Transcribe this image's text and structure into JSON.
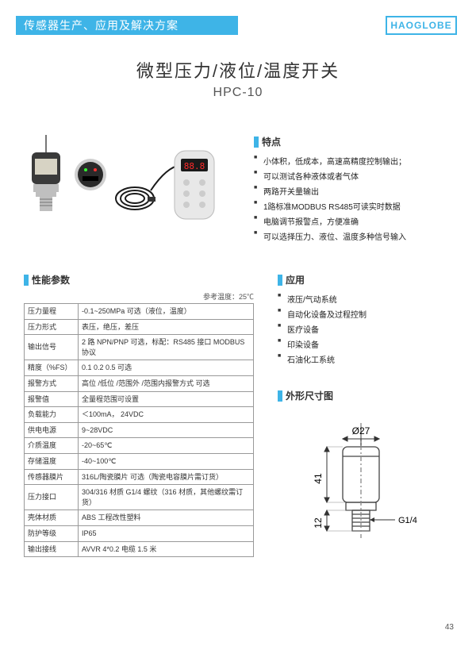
{
  "header": {
    "banner": "传感器生产、应用及解决方案",
    "logo": "HAOGLOBE"
  },
  "title": {
    "line1": "微型压力/液位/温度开关",
    "line2": "HPC-10"
  },
  "features": {
    "heading": "特点",
    "items": [
      "小体积，低成本，高速高精度控制输出；",
      "可以测试各种液体或者气体",
      "两路开关量输出",
      "1路标准MODBUS RS485可读实时数据",
      "电脑调节报警点，方便准确",
      "可以选择压力、液位、温度多种信号输入"
    ]
  },
  "specs": {
    "heading": "性能参数",
    "ref_temp": "参考温度：25℃",
    "rows": [
      {
        "k": "压力量程",
        "v": "-0.1~250MPa 可选（液位，温度）"
      },
      {
        "k": "压力形式",
        "v": "表压，绝压，差压"
      },
      {
        "k": "输出信号",
        "v": "2 路 NPN/PNP 可选，标配：RS485 接口 MODBUS协议"
      },
      {
        "k": "精度（%FS）",
        "v": "0.1   0.2  0.5   可选"
      },
      {
        "k": "报警方式",
        "v": "高位 /低位 /范围外 /范围内报警方式 可选"
      },
      {
        "k": "报警值",
        "v": "全量程范围可设置"
      },
      {
        "k": "负载能力",
        "v": "＜100mA，   24VDC"
      },
      {
        "k": "供电电源",
        "v": "9~28VDC"
      },
      {
        "k": "介质温度",
        "v": "-20~65℃"
      },
      {
        "k": "存储温度",
        "v": "-40~100℃"
      },
      {
        "k": "传感器膜片",
        "v": "316L/陶瓷膜片 可选（陶瓷电容膜片需订货）"
      },
      {
        "k": "压力接口",
        "v": "304/316 材质 G1/4 螺纹（316 材质，其他螺纹需订货）"
      },
      {
        "k": "壳体材质",
        "v": "ABS 工程改性塑料"
      },
      {
        "k": "防护等级",
        "v": "IP65"
      },
      {
        "k": "输出接线",
        "v": "AVVR 4*0.2  电缆  1.5 米"
      }
    ]
  },
  "apps": {
    "heading": "应用",
    "items": [
      "液压/气动系统",
      "自动化设备及过程控制",
      "医疗设备",
      "印染设备",
      "石油化工系统"
    ]
  },
  "dimfig": {
    "heading": "外形尺寸图",
    "diameter_label": "Ø27",
    "h1": "41",
    "h2": "12",
    "thread": "G1/4",
    "colors": {
      "stroke": "#444444",
      "dim": "#333333",
      "thin": "#888888"
    }
  },
  "page": "43",
  "product_image": {
    "sensor_body": "#bfbfbf",
    "sensor_cap": "#3a3a3a",
    "panel_face": "#2a2a2a",
    "panel_ring": "#cfcfcf",
    "handheld_body": "#e8e8e8",
    "handheld_disp_bg": "#1a1a1a",
    "handheld_disp_led": "#ff2a2a",
    "cable": "#1a1a1a"
  }
}
